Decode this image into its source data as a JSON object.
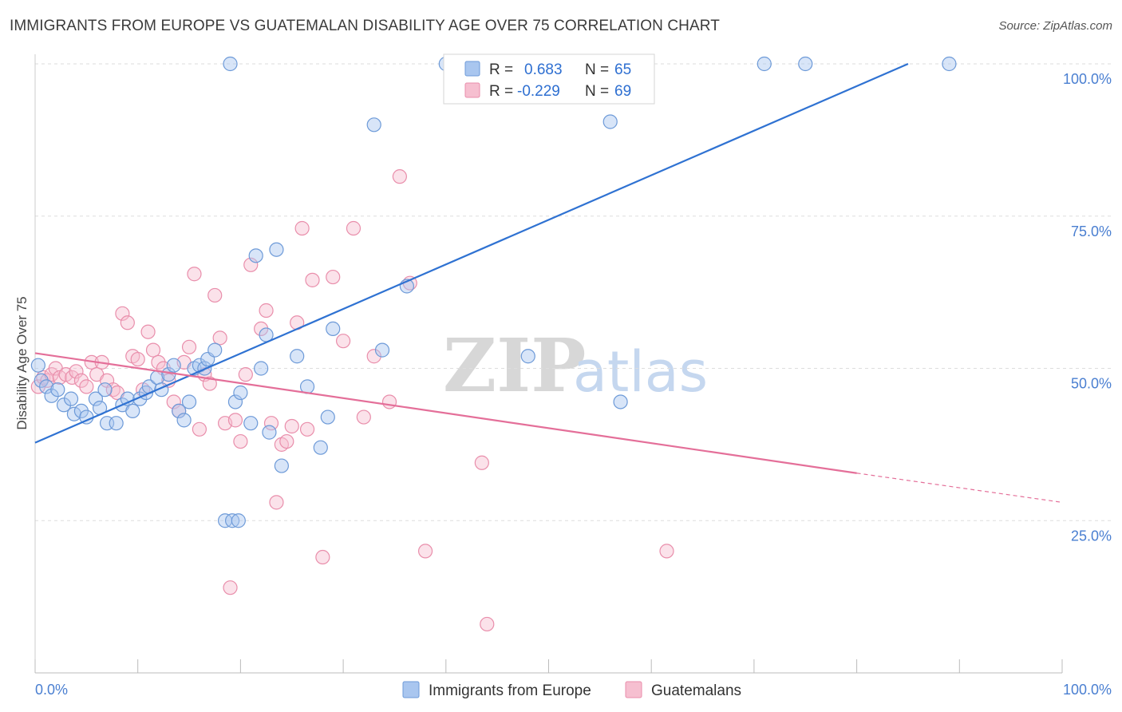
{
  "header": {
    "title": "IMMIGRANTS FROM EUROPE VS GUATEMALAN DISABILITY AGE OVER 75 CORRELATION CHART",
    "source": "Source: ZipAtlas.com"
  },
  "legend_box": {
    "r_label": "R =",
    "n_label": "N =",
    "series1_r": "0.683",
    "series1_n": "65",
    "series2_r": "-0.229",
    "series2_n": "69"
  },
  "watermark": {
    "zip": "ZIP",
    "atlas": "atlas"
  },
  "colors": {
    "series1_fill": "#a9c6ef",
    "series1_stroke": "#6d9ad8",
    "series1_line": "#2f72d2",
    "series2_fill": "#f6bfd0",
    "series2_stroke": "#e98eab",
    "series2_line": "#e46f99",
    "grid": "#dddddd",
    "axis_text": "#4a7fd1"
  },
  "chart_data": {
    "type": "scatter",
    "title": "IMMIGRANTS FROM EUROPE VS GUATEMALAN DISABILITY AGE OVER 75 CORRELATION CHART",
    "xlabel": "",
    "ylabel": "Disability Age Over 75",
    "xlim": [
      0,
      100
    ],
    "ylim": [
      0,
      100
    ],
    "x_tick_labels": [
      "0.0%",
      "100.0%"
    ],
    "y_tick_values": [
      25,
      50,
      75,
      100
    ],
    "y_tick_labels": [
      "25.0%",
      "50.0%",
      "75.0%",
      "100.0%"
    ],
    "grid": true,
    "legend_placement": "bottom-center",
    "series": [
      {
        "name": "Immigrants from Europe",
        "R": 0.683,
        "N": 65,
        "trend": {
          "x": [
            0,
            85
          ],
          "y": [
            37.8,
            100
          ]
        },
        "points": [
          [
            0.3,
            50.5
          ],
          [
            0.6,
            48
          ],
          [
            1.1,
            47
          ],
          [
            1.6,
            45.5
          ],
          [
            2.2,
            46.5
          ],
          [
            2.8,
            44
          ],
          [
            3.5,
            45
          ],
          [
            3.8,
            42.5
          ],
          [
            4.5,
            43
          ],
          [
            5.0,
            42
          ],
          [
            5.9,
            45
          ],
          [
            6.3,
            43.5
          ],
          [
            6.8,
            46.5
          ],
          [
            7.0,
            41
          ],
          [
            7.9,
            41
          ],
          [
            8.5,
            44
          ],
          [
            9.0,
            45
          ],
          [
            9.5,
            43
          ],
          [
            10.2,
            45
          ],
          [
            10.8,
            46
          ],
          [
            11.1,
            47
          ],
          [
            11.9,
            48.5
          ],
          [
            12.3,
            46.5
          ],
          [
            13.0,
            49
          ],
          [
            13.5,
            50.5
          ],
          [
            14.0,
            43
          ],
          [
            14.5,
            41.5
          ],
          [
            15.0,
            44.5
          ],
          [
            15.5,
            50
          ],
          [
            16.0,
            50.5
          ],
          [
            16.5,
            50
          ],
          [
            16.8,
            51.5
          ],
          [
            17.5,
            53
          ],
          [
            18.5,
            25
          ],
          [
            19.0,
            100
          ],
          [
            19.2,
            25
          ],
          [
            19.5,
            44.5
          ],
          [
            19.8,
            25
          ],
          [
            20.0,
            46
          ],
          [
            21.0,
            41
          ],
          [
            21.5,
            68.5
          ],
          [
            22.0,
            50
          ],
          [
            22.5,
            55.5
          ],
          [
            22.8,
            39.5
          ],
          [
            23.5,
            69.5
          ],
          [
            24.0,
            34
          ],
          [
            25.5,
            52
          ],
          [
            26.5,
            47
          ],
          [
            27.8,
            37
          ],
          [
            28.5,
            42
          ],
          [
            29.0,
            56.5
          ],
          [
            33.0,
            90
          ],
          [
            33.8,
            53
          ],
          [
            36.2,
            63.5
          ],
          [
            40.0,
            100
          ],
          [
            41.0,
            100
          ],
          [
            47.0,
            100
          ],
          [
            48.0,
            52
          ],
          [
            56.0,
            90.5
          ],
          [
            57.0,
            44.5
          ],
          [
            71.0,
            100
          ],
          [
            75.0,
            100
          ],
          [
            89.0,
            100
          ]
        ]
      },
      {
        "name": "Guatemalans",
        "R": -0.229,
        "N": 69,
        "trend": {
          "x": [
            0,
            80
          ],
          "y": [
            52.5,
            32.8
          ]
        },
        "trend_dashed": {
          "x": [
            80,
            100
          ],
          "y": [
            32.8,
            28.0
          ]
        },
        "points": [
          [
            0.3,
            47
          ],
          [
            0.8,
            48.5
          ],
          [
            1.2,
            48
          ],
          [
            1.6,
            49
          ],
          [
            2.0,
            50
          ],
          [
            2.4,
            48.5
          ],
          [
            3.0,
            49
          ],
          [
            3.6,
            48.5
          ],
          [
            4.0,
            49.5
          ],
          [
            4.5,
            48
          ],
          [
            5.0,
            47
          ],
          [
            5.5,
            51
          ],
          [
            6.0,
            49
          ],
          [
            6.5,
            51
          ],
          [
            7.0,
            48
          ],
          [
            7.6,
            46.5
          ],
          [
            8.0,
            46
          ],
          [
            8.5,
            59
          ],
          [
            9.0,
            57.5
          ],
          [
            9.5,
            52
          ],
          [
            10.0,
            51.5
          ],
          [
            10.5,
            46.5
          ],
          [
            11.0,
            56
          ],
          [
            11.5,
            53
          ],
          [
            12.0,
            51
          ],
          [
            12.5,
            50
          ],
          [
            13.0,
            48
          ],
          [
            13.5,
            44.5
          ],
          [
            14.0,
            43
          ],
          [
            14.5,
            51
          ],
          [
            15.0,
            53.5
          ],
          [
            15.5,
            65.5
          ],
          [
            16.0,
            40
          ],
          [
            16.5,
            49
          ],
          [
            17.0,
            47.5
          ],
          [
            17.5,
            62
          ],
          [
            18.0,
            55
          ],
          [
            18.5,
            41
          ],
          [
            19.0,
            14
          ],
          [
            19.5,
            41.5
          ],
          [
            20.0,
            38
          ],
          [
            20.5,
            49
          ],
          [
            21.0,
            67
          ],
          [
            22.0,
            56.5
          ],
          [
            22.5,
            59.5
          ],
          [
            23.0,
            41
          ],
          [
            23.5,
            28
          ],
          [
            24.0,
            37.5
          ],
          [
            24.5,
            38
          ],
          [
            25.0,
            40.5
          ],
          [
            25.5,
            57.5
          ],
          [
            26.0,
            73
          ],
          [
            26.5,
            40
          ],
          [
            27.0,
            64.5
          ],
          [
            28.0,
            19
          ],
          [
            29.0,
            65
          ],
          [
            30.0,
            54.5
          ],
          [
            31.0,
            73
          ],
          [
            32.0,
            42
          ],
          [
            33.0,
            52
          ],
          [
            34.5,
            44.5
          ],
          [
            35.5,
            81.5
          ],
          [
            36.5,
            64
          ],
          [
            38.0,
            20
          ],
          [
            43.5,
            34.5
          ],
          [
            44.0,
            8
          ],
          [
            61.5,
            20
          ]
        ]
      }
    ]
  }
}
